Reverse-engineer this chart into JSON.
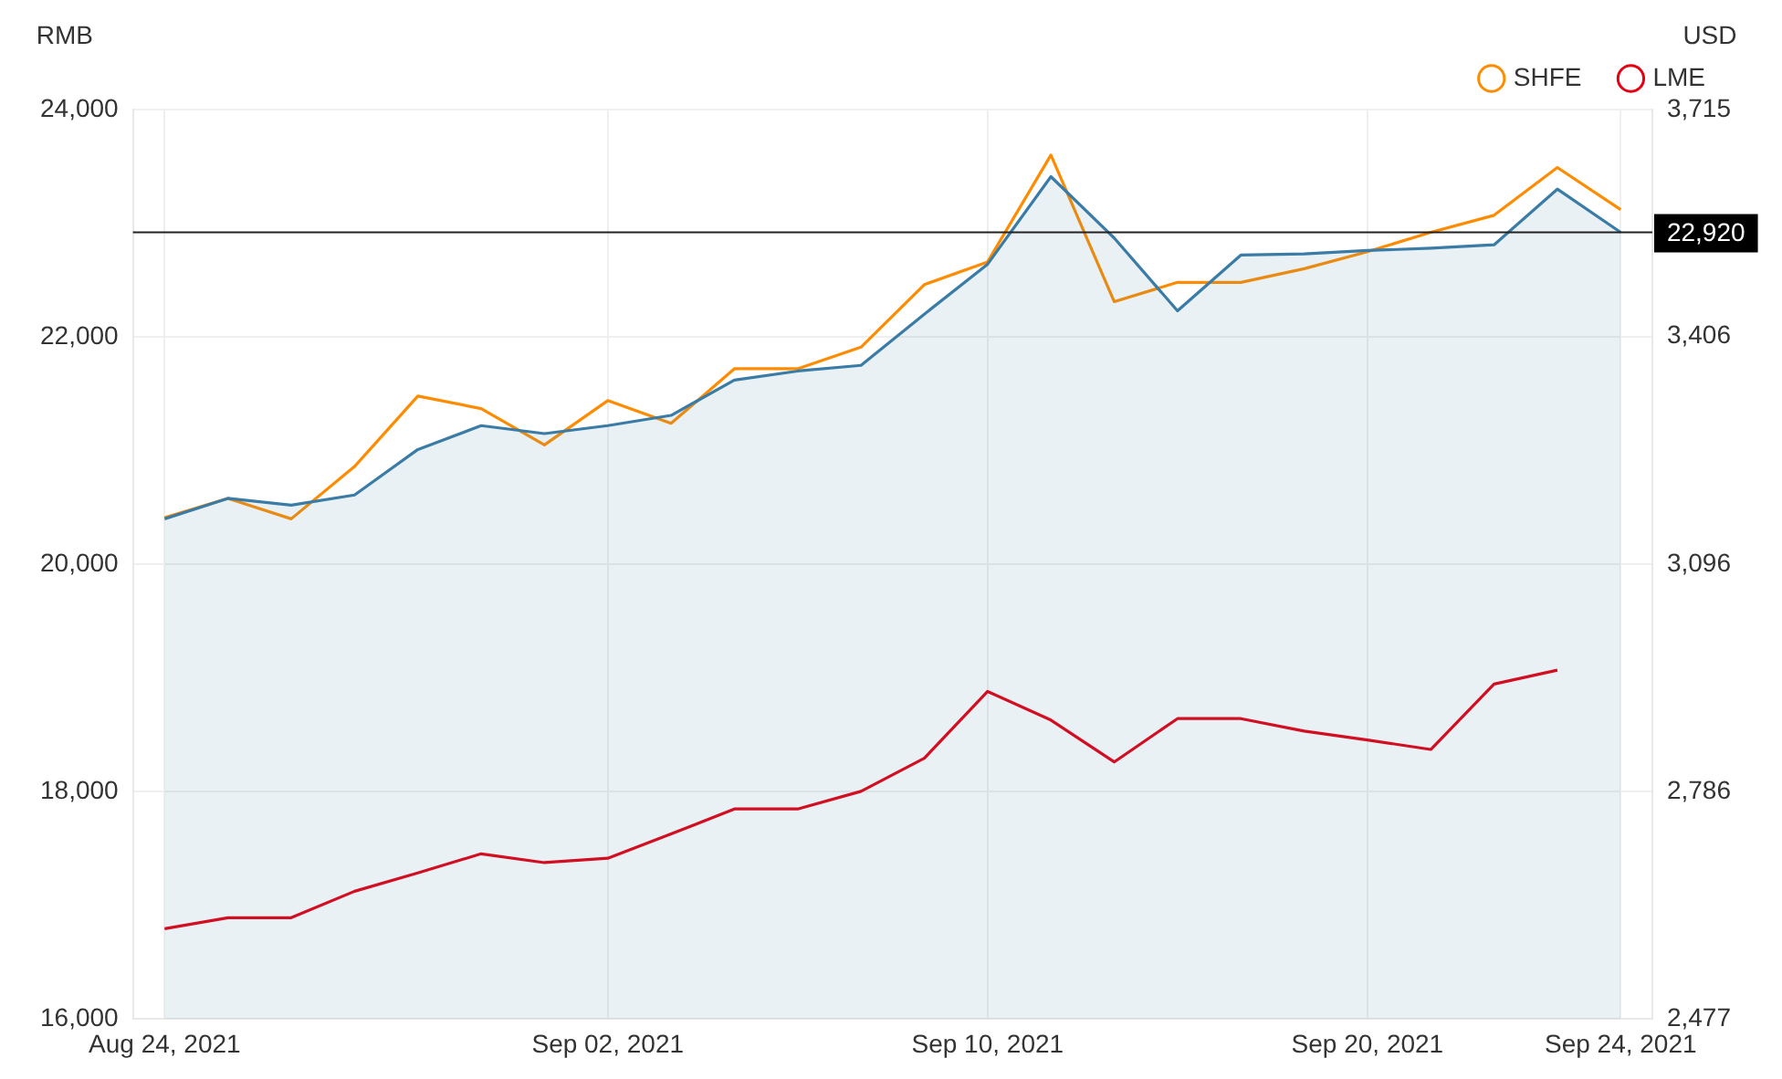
{
  "chart_data": {
    "type": "line",
    "ylabel": "RMB",
    "y2label": "USD",
    "categories": [
      "Aug 24, 2021",
      null,
      null,
      null,
      null,
      null,
      null,
      "Sep 02, 2021",
      null,
      null,
      null,
      null,
      null,
      "Sep 10, 2021",
      null,
      null,
      null,
      null,
      null,
      "Sep 20, 2021",
      null,
      null,
      null,
      "Sep 24, 2021"
    ],
    "series": [
      {
        "type": "area",
        "color": "#3a7ca5",
        "values": [
          20400,
          20580,
          20520,
          20610,
          21010,
          21220,
          21150,
          21220,
          21310,
          21620,
          21700,
          21750,
          22200,
          22640,
          23410,
          22870,
          22230,
          22720,
          22730,
          22760,
          22780,
          22810,
          23300,
          22920
        ]
      },
      {
        "name": "SHFE",
        "color": "#ff8c00",
        "values": [
          20410,
          20580,
          20400,
          20860,
          21480,
          21370,
          21050,
          21440,
          21240,
          21720,
          21720,
          21910,
          22460,
          22660,
          23600,
          22310,
          22480,
          22480,
          22600,
          22750,
          22920,
          23070,
          23490,
          23120
        ]
      },
      {
        "name": "LME",
        "color": "#e60012",
        "axis": "y2",
        "values": [
          2600,
          2615,
          2615,
          2651,
          2676,
          2702,
          2690,
          2696,
          2729,
          2763,
          2763,
          2787,
          2832,
          2923,
          2884,
          2827,
          2886,
          2886,
          2869,
          2857,
          2844,
          2933,
          2952,
          null
        ]
      }
    ],
    "ylim": [
      16000,
      24000
    ],
    "yticks": [
      {
        "value": 16000,
        "label": "16,000"
      },
      {
        "value": 18000,
        "label": "18,000"
      },
      {
        "value": 20000,
        "label": "20,000"
      },
      {
        "value": 22000,
        "label": "22,000"
      },
      {
        "value": 24000,
        "label": "24,000"
      }
    ],
    "y2lim": [
      2477,
      3715
    ],
    "y2ticks": [
      {
        "value": 2477,
        "label": "2,477"
      },
      {
        "value": 2786,
        "label": "2,786"
      },
      {
        "value": 3096,
        "label": "3,096"
      },
      {
        "value": 3406,
        "label": "3,406"
      },
      {
        "value": 3715,
        "label": "3,715"
      }
    ],
    "ref_lines": [
      {
        "axis": "y",
        "value": 22920,
        "label": "22,920",
        "color": "#222222"
      }
    ],
    "grid": true,
    "legend": "top right",
    "marker": "none",
    "line_style": "solid"
  }
}
